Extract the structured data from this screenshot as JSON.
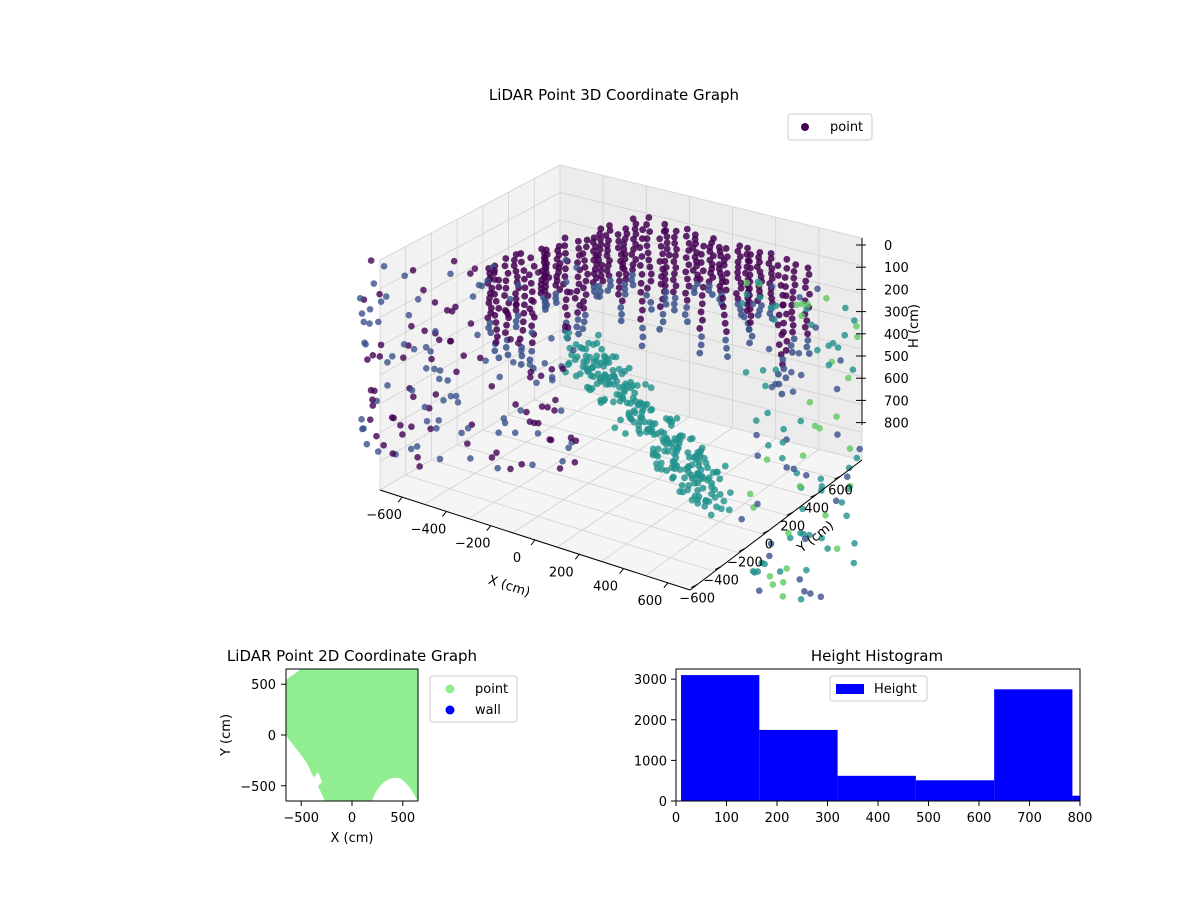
{
  "chart_data": [
    {
      "type": "scatter3d",
      "title": "LiDAR Point 3D Coordinate Graph",
      "xlabel": "X (cm)",
      "ylabel": "Y (cm)",
      "zlabel": "H (cm)",
      "xlim": [
        -650,
        650
      ],
      "ylim": [
        -650,
        650
      ],
      "zlim": [
        0,
        800
      ],
      "z_inverted": true,
      "x_ticks": [
        "−600",
        "−400",
        "−200",
        "0",
        "200",
        "400",
        "600"
      ],
      "y_ticks": [
        "−600",
        "−400",
        "−200",
        "0",
        "200",
        "400",
        "600"
      ],
      "z_ticks": [
        "0",
        "100",
        "200",
        "300",
        "400",
        "500",
        "600",
        "700",
        "800"
      ],
      "grid": true,
      "legend": {
        "placement": "top-right",
        "entries": [
          "point"
        ]
      },
      "colormap": "viridis",
      "colors": {
        "legend_marker": "#440154",
        "low": "#440154",
        "mid": "#3b528b",
        "high": "#21918c",
        "top": "#5ec962"
      }
    },
    {
      "type": "scatter",
      "title": "LiDAR Point 2D Coordinate Graph",
      "xlabel": "X (cm)",
      "ylabel": "Y (cm)",
      "xlim": [
        -650,
        650
      ],
      "ylim": [
        -650,
        650
      ],
      "x_ticks": [
        "−500",
        "0",
        "500"
      ],
      "y_ticks": [
        "500",
        "0",
        "−500"
      ],
      "legend": {
        "placement": "outside-right",
        "entries": [
          "point",
          "wall"
        ]
      },
      "colors": {
        "point": "#90ee90",
        "wall": "#0000ff"
      }
    },
    {
      "type": "bar",
      "title": "Height Histogram",
      "xlabel": "",
      "ylabel": "",
      "xlim": [
        0,
        800
      ],
      "ylim": [
        0,
        3250
      ],
      "x_ticks": [
        "0",
        "100",
        "200",
        "300",
        "400",
        "500",
        "600",
        "700",
        "800"
      ],
      "y_ticks": [
        "0",
        "1000",
        "2000",
        "3000"
      ],
      "bins": [
        {
          "start": 10,
          "end": 165,
          "count": 3100
        },
        {
          "start": 165,
          "end": 320,
          "count": 1750
        },
        {
          "start": 320,
          "end": 475,
          "count": 620
        },
        {
          "start": 475,
          "end": 630,
          "count": 510
        },
        {
          "start": 630,
          "end": 785,
          "count": 2750
        },
        {
          "start": 785,
          "end": 800,
          "count": 130
        }
      ],
      "legend": {
        "placement": "top-center",
        "entries": [
          "Height"
        ]
      },
      "colors": {
        "bar": "#0000ff"
      }
    }
  ]
}
